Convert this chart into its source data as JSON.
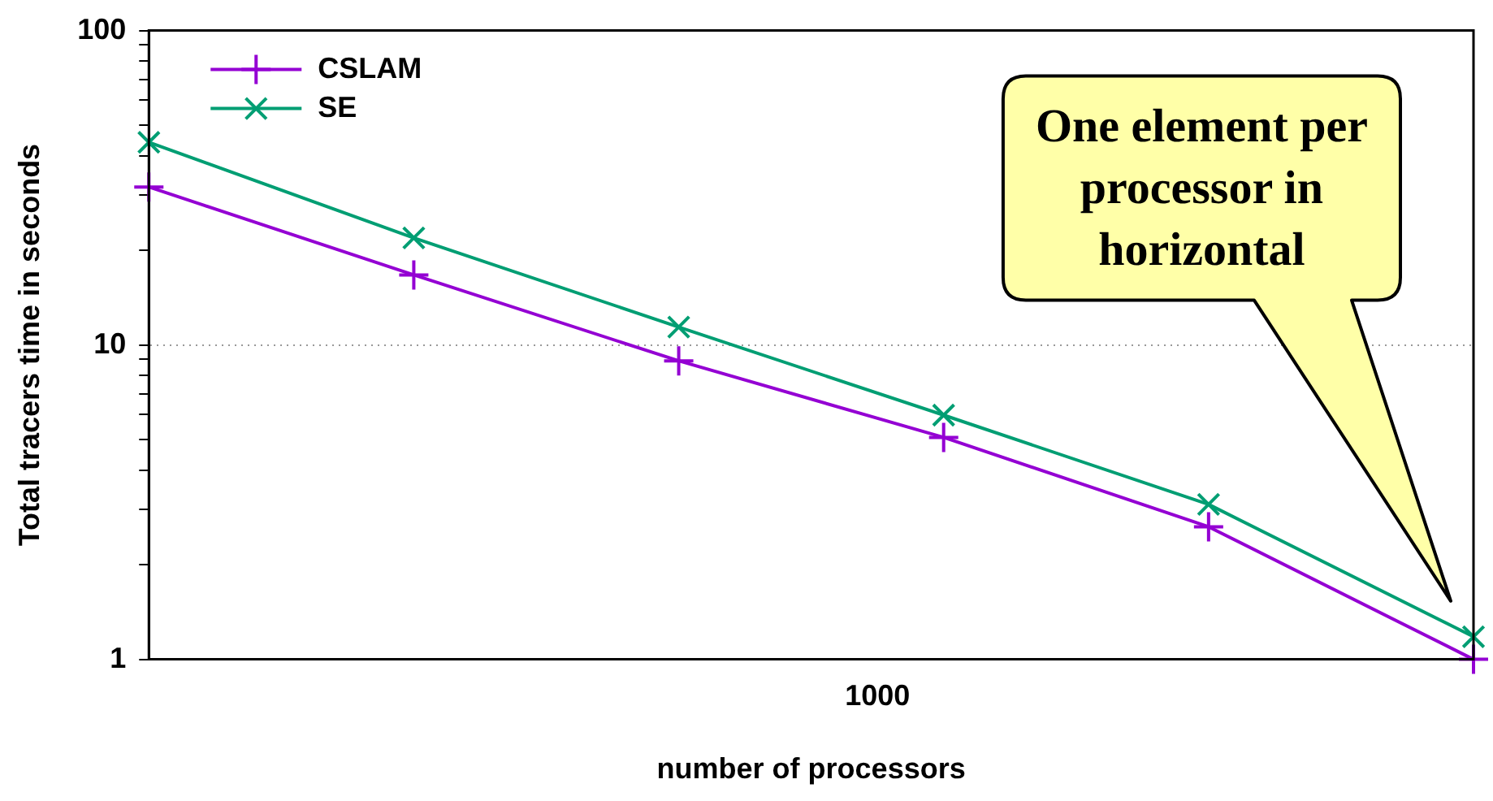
{
  "chart_data": {
    "type": "line",
    "xlabel": "number of processors",
    "ylabel": "Total tracers time in seconds",
    "log": "y",
    "grid": "y",
    "legend": "top left",
    "line_style": "solid",
    "categories": [
      null,
      null,
      null,
      null,
      null,
      null
    ],
    "ylim": [
      1,
      100
    ],
    "yticks": [
      1,
      {
        "value": 2,
        "label": null
      },
      {
        "value": 3,
        "label": null
      },
      {
        "value": 4,
        "label": null
      },
      {
        "value": 5,
        "label": null
      },
      {
        "value": 6,
        "label": null
      },
      {
        "value": 7,
        "label": null
      },
      {
        "value": 8,
        "label": null
      },
      {
        "value": 9,
        "label": null
      },
      10,
      {
        "value": 20,
        "label": null
      },
      {
        "value": 30,
        "label": null
      },
      {
        "value": 40,
        "label": null
      },
      {
        "value": 50,
        "label": null
      },
      {
        "value": 60,
        "label": null
      },
      {
        "value": 70,
        "label": null
      },
      {
        "value": 80,
        "label": null
      },
      {
        "value": 90,
        "label": null
      },
      100
    ],
    "series": [
      {
        "name": "CSLAM",
        "color": "#9400d3",
        "marker": "cross",
        "values": [
          31.8,
          16.7,
          8.9,
          5.08,
          2.64,
          1.0
        ]
      },
      {
        "name": "SE",
        "color": "#009e73",
        "marker": "x",
        "values": [
          44.1,
          21.9,
          11.4,
          5.98,
          3.11,
          1.18
        ]
      }
    ],
    "annotations": [
      "One element per processor in horizontal",
      "1000"
    ]
  }
}
